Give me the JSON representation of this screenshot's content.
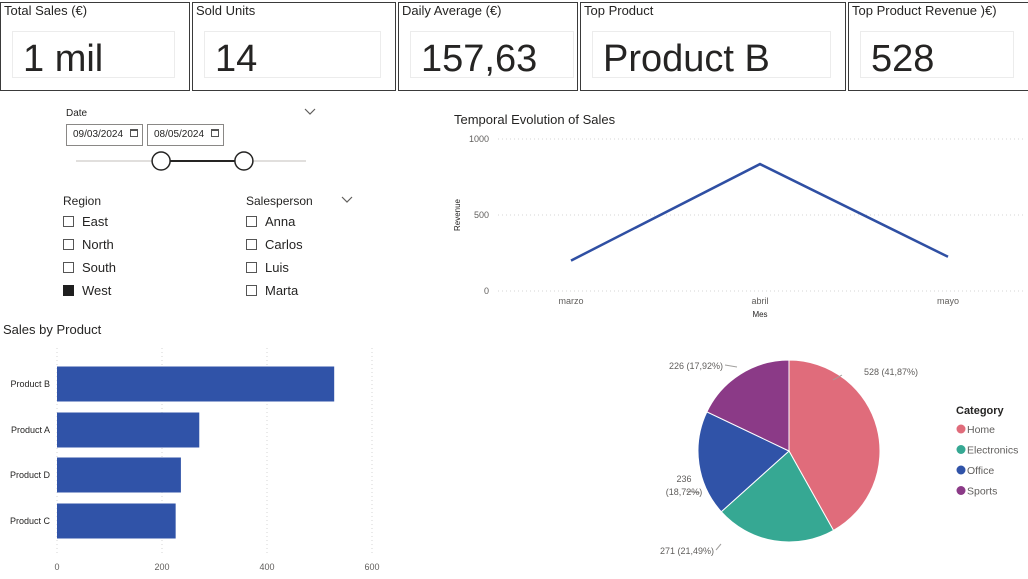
{
  "cards": [
    {
      "title": "Total Sales (€)",
      "value": "1 mil"
    },
    {
      "title": "Sold Units",
      "value": "14"
    },
    {
      "title": "Daily Average (€)",
      "value": "157,63"
    },
    {
      "title": "Top Product",
      "value": "Product B"
    },
    {
      "title": "Top Product Revenue )€)",
      "value": "528"
    }
  ],
  "date_slicer": {
    "label": "Date",
    "start": "09/03/2024",
    "end": "08/05/2024",
    "range_start_fraction": 0.37,
    "range_end_fraction": 0.73
  },
  "region_slicer": {
    "title": "Region",
    "items": [
      {
        "label": "East",
        "checked": false
      },
      {
        "label": "North",
        "checked": false
      },
      {
        "label": "South",
        "checked": false
      },
      {
        "label": "West",
        "checked": true
      }
    ]
  },
  "salesperson_slicer": {
    "title": "Salesperson",
    "items": [
      {
        "label": "Anna",
        "checked": false
      },
      {
        "label": "Carlos",
        "checked": false
      },
      {
        "label": "Luis",
        "checked": false
      },
      {
        "label": "Marta",
        "checked": false
      }
    ]
  },
  "chart_data": [
    {
      "type": "line",
      "title": "Temporal Evolution of Sales",
      "xlabel": "Mes",
      "ylabel": "Revenue",
      "categories": [
        "marzo",
        "abril",
        "mayo"
      ],
      "values": [
        200,
        835,
        225
      ],
      "ylim": [
        0,
        1000
      ],
      "yticks": [
        "0",
        "500",
        "1000"
      ],
      "color": "#2f4fa3",
      "grid": true
    },
    {
      "type": "bar",
      "orientation": "horizontal",
      "title": "Sales by Product",
      "categories": [
        "Product B",
        "Product A",
        "Product D",
        "Product C"
      ],
      "values": [
        528,
        271,
        236,
        226
      ],
      "xlim": [
        0,
        600
      ],
      "xticks": [
        "0",
        "200",
        "400",
        "600"
      ],
      "color": "#3053a8",
      "grid": true
    },
    {
      "type": "pie",
      "legend_title": "Category",
      "legend_position": "right",
      "slices": [
        {
          "name": "Home",
          "value": 528,
          "label": "528 (41,87%)",
          "color": "#e06c7b"
        },
        {
          "name": "Electronics",
          "value": 271,
          "label": "271 (21,49%)",
          "color": "#36a893"
        },
        {
          "name": "Office",
          "value": 236,
          "label": "236 (18,72%)",
          "label_lines": [
            "236",
            "(18,72%)"
          ],
          "color": "#3053a8"
        },
        {
          "name": "Sports",
          "value": 226,
          "label": "226 (17,92%)",
          "color": "#8b3a87"
        }
      ]
    }
  ]
}
